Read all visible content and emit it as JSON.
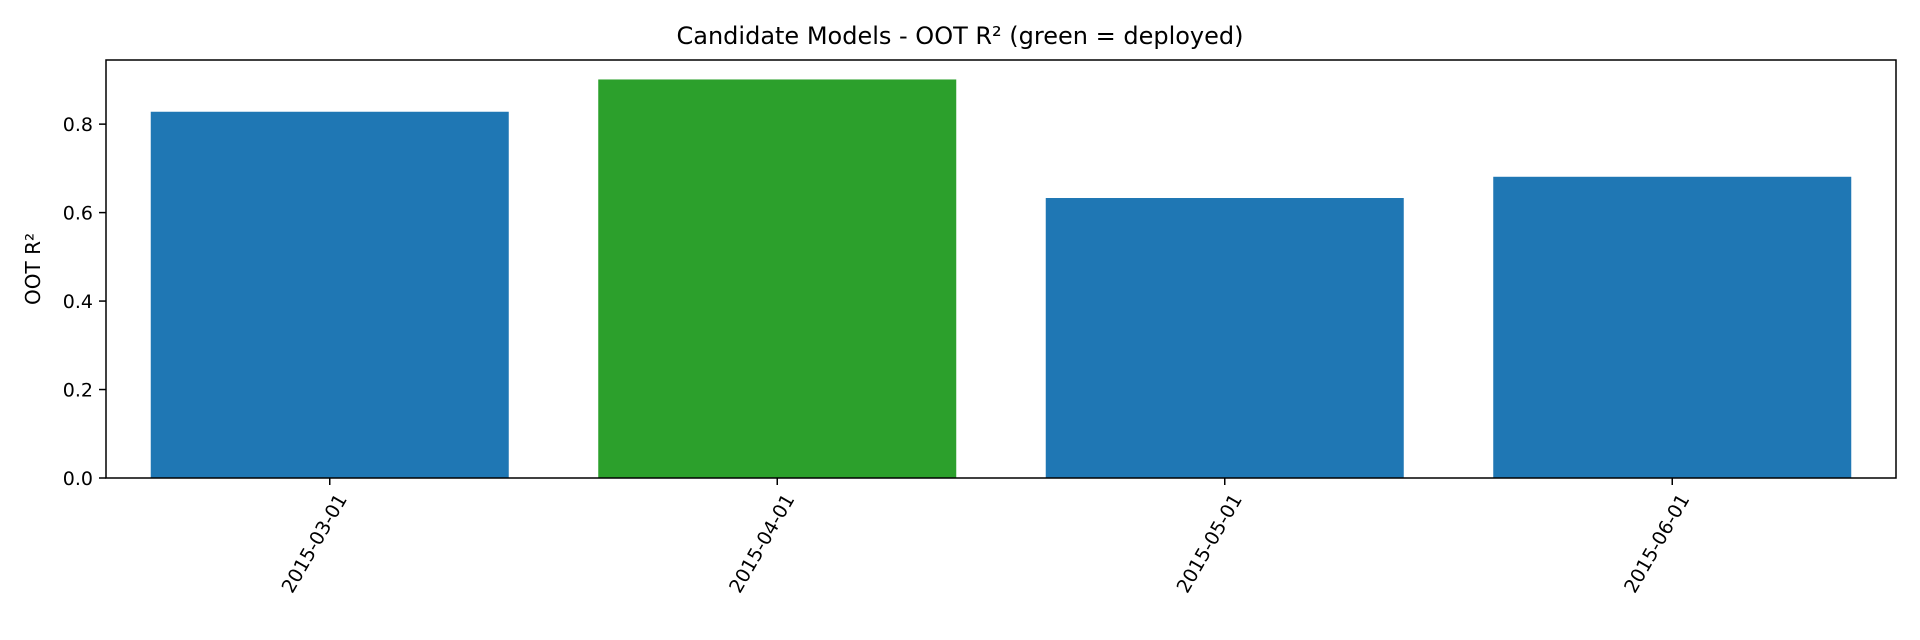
{
  "chart_data": {
    "type": "bar",
    "title": "Candidate Models - OOT R² (green = deployed)",
    "xlabel": "",
    "ylabel": "OOT R²",
    "categories": [
      "2015-03-01",
      "2015-04-01",
      "2015-05-01",
      "2015-06-01"
    ],
    "values": [
      0.828,
      0.901,
      0.633,
      0.681
    ],
    "deployed": [
      false,
      true,
      false,
      false
    ],
    "ylim": [
      0,
      0.945
    ],
    "yticks": [
      0.0,
      0.2,
      0.4,
      0.6,
      0.8
    ],
    "ytick_labels": [
      "0.0",
      "0.2",
      "0.4",
      "0.6",
      "0.8"
    ],
    "grid": false,
    "legend": "none",
    "colors": {
      "default": "#1f77b4",
      "deployed": "#2ca02c"
    }
  }
}
